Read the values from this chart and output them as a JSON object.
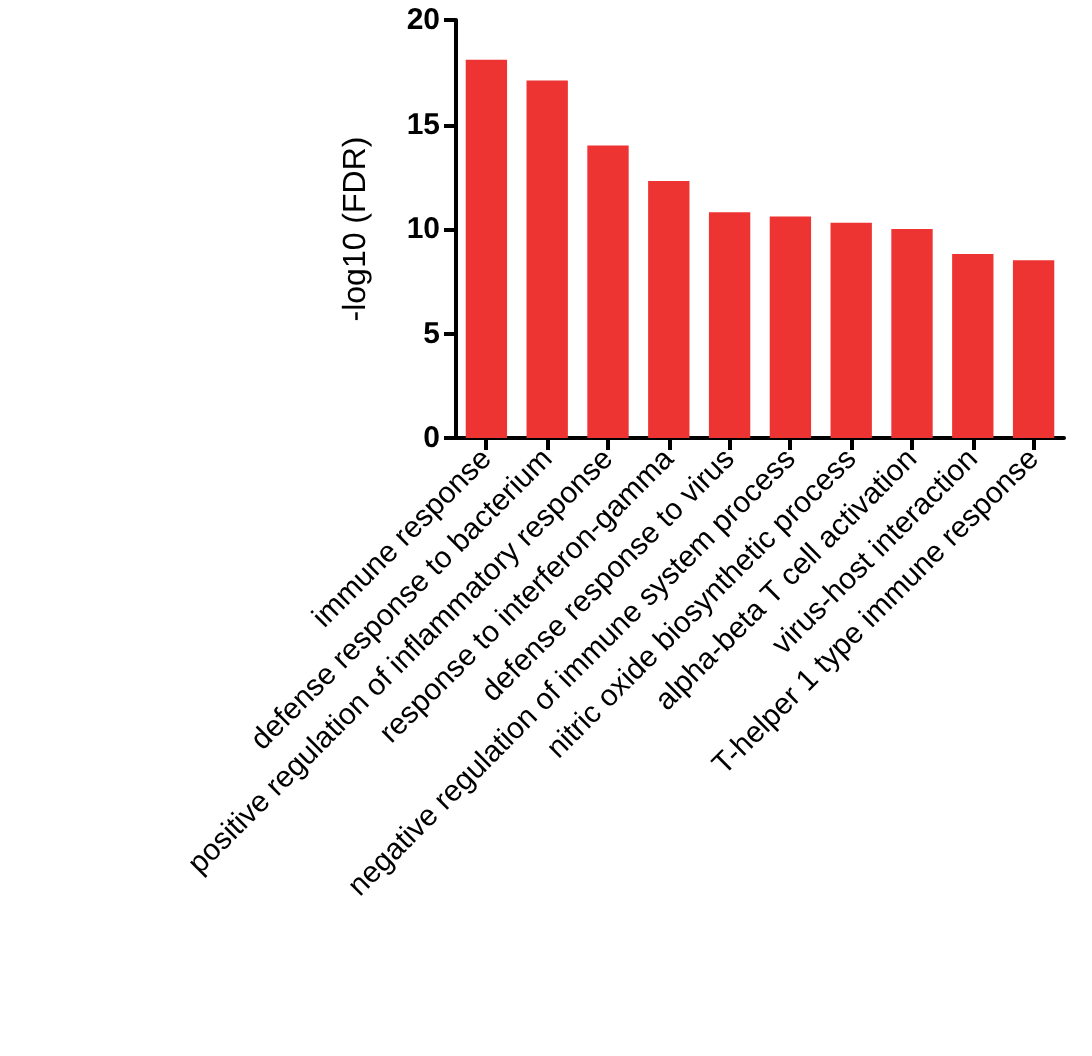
{
  "chart_data": {
    "type": "bar",
    "ylabel": "-log10 (FDR)",
    "categories": [
      "immune response",
      "defense response to bacterium",
      "positive regulation of inflammatory response",
      "response to interferon-gamma",
      "defense response to virus",
      "negative regulation of immune system process",
      "nitric oxide biosynthetic process",
      "alpha-beta T cell activation",
      "virus-host interaction",
      "T-helper 1 type immune response"
    ],
    "values": [
      18.1,
      17.1,
      14.0,
      12.3,
      10.8,
      10.6,
      10.3,
      10.0,
      8.8,
      8.5
    ],
    "color": "#ee3333",
    "ylim": [
      0,
      20
    ],
    "yticks": [
      0,
      5,
      10,
      15,
      20
    ],
    "grid": false
  }
}
